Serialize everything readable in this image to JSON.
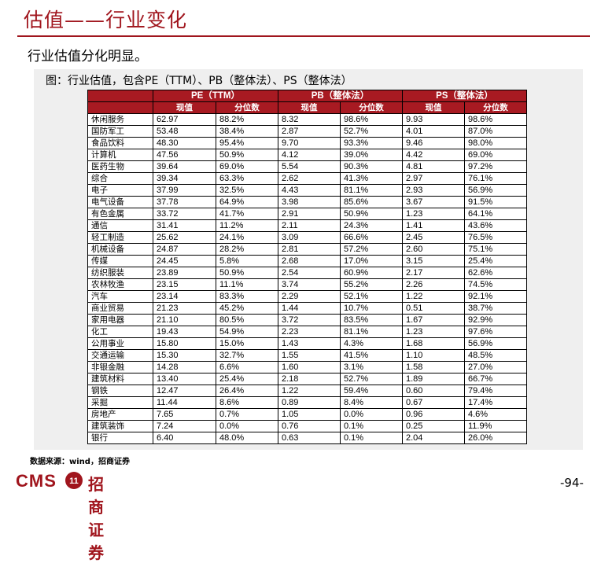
{
  "header": {
    "title": "估值——行业变化",
    "subtitle": "行业估值分化明显。"
  },
  "figure": {
    "caption": "图：行业估值，包含PE（TTM）、PB（整体法）、PS（整体法）",
    "groups": [
      "PE（TTM）",
      "PB（整体法）",
      "PS（整体法）"
    ],
    "subheaders": [
      "现值",
      "分位数",
      "现值",
      "分位数",
      "现值",
      "分位数"
    ],
    "rows": [
      [
        "休闲服务",
        "62.97",
        "88.2%",
        "8.32",
        "98.6%",
        "9.93",
        "98.6%"
      ],
      [
        "国防军工",
        "53.48",
        "38.4%",
        "2.87",
        "52.7%",
        "4.01",
        "87.0%"
      ],
      [
        "食品饮料",
        "48.30",
        "95.4%",
        "9.70",
        "93.3%",
        "9.46",
        "98.0%"
      ],
      [
        "计算机",
        "47.56",
        "50.9%",
        "4.12",
        "39.0%",
        "4.42",
        "69.0%"
      ],
      [
        "医药生物",
        "39.64",
        "69.0%",
        "5.54",
        "90.3%",
        "4.81",
        "97.2%"
      ],
      [
        "综合",
        "39.34",
        "63.3%",
        "2.62",
        "41.3%",
        "2.97",
        "76.1%"
      ],
      [
        "电子",
        "37.99",
        "32.5%",
        "4.43",
        "81.1%",
        "2.93",
        "56.9%"
      ],
      [
        "电气设备",
        "37.78",
        "64.9%",
        "3.98",
        "85.6%",
        "3.67",
        "91.5%"
      ],
      [
        "有色金属",
        "33.72",
        "41.7%",
        "2.91",
        "50.9%",
        "1.23",
        "64.1%"
      ],
      [
        "通信",
        "31.41",
        "11.2%",
        "2.11",
        "24.3%",
        "1.41",
        "43.6%"
      ],
      [
        "轻工制造",
        "25.62",
        "24.1%",
        "3.09",
        "66.6%",
        "2.45",
        "76.5%"
      ],
      [
        "机械设备",
        "24.87",
        "28.2%",
        "2.81",
        "57.2%",
        "2.60",
        "75.1%"
      ],
      [
        "传媒",
        "24.45",
        "5.8%",
        "2.68",
        "17.0%",
        "3.15",
        "25.4%"
      ],
      [
        "纺织服装",
        "23.89",
        "50.9%",
        "2.54",
        "60.9%",
        "2.17",
        "62.6%"
      ],
      [
        "农林牧渔",
        "23.15",
        "11.1%",
        "3.74",
        "55.2%",
        "2.26",
        "74.5%"
      ],
      [
        "汽车",
        "23.14",
        "83.3%",
        "2.29",
        "52.1%",
        "1.22",
        "92.1%"
      ],
      [
        "商业贸易",
        "21.23",
        "45.2%",
        "1.44",
        "10.7%",
        "0.51",
        "38.7%"
      ],
      [
        "家用电器",
        "21.10",
        "80.5%",
        "3.72",
        "83.5%",
        "1.67",
        "92.9%"
      ],
      [
        "化工",
        "19.43",
        "54.9%",
        "2.23",
        "81.1%",
        "1.23",
        "97.6%"
      ],
      [
        "公用事业",
        "15.80",
        "15.0%",
        "1.43",
        "4.3%",
        "1.68",
        "56.9%"
      ],
      [
        "交通运输",
        "15.30",
        "32.7%",
        "1.55",
        "41.5%",
        "1.10",
        "48.5%"
      ],
      [
        "非银金融",
        "14.28",
        "6.6%",
        "1.60",
        "3.1%",
        "1.58",
        "27.0%"
      ],
      [
        "建筑材料",
        "13.40",
        "25.4%",
        "2.18",
        "52.7%",
        "1.89",
        "66.7%"
      ],
      [
        "钢铁",
        "12.47",
        "26.4%",
        "1.22",
        "59.4%",
        "0.60",
        "79.4%"
      ],
      [
        "采掘",
        "11.44",
        "8.6%",
        "0.89",
        "8.4%",
        "0.67",
        "17.4%"
      ],
      [
        "房地产",
        "7.65",
        "0.7%",
        "1.05",
        "0.0%",
        "0.96",
        "4.6%"
      ],
      [
        "建筑装饰",
        "7.24",
        "0.0%",
        "0.76",
        "0.1%",
        "0.25",
        "11.9%"
      ],
      [
        "银行",
        "6.40",
        "48.0%",
        "0.63",
        "0.1%",
        "2.04",
        "26.0%"
      ]
    ]
  },
  "footer": {
    "source": "数据来源：wind，招商证券",
    "logo_text": "CMS",
    "logo_mark": "11",
    "logo_name": "招商证券",
    "page": "-94-"
  },
  "colors": {
    "accent": "#a0151d",
    "header_fill": "#a81a22",
    "panel": "#efefef"
  }
}
